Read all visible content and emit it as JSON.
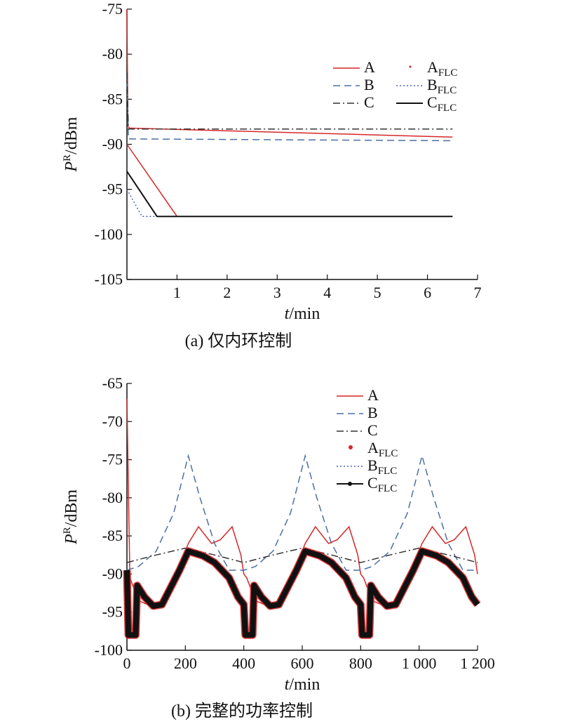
{
  "chart_data": [
    {
      "type": "line",
      "caption": "(a) 仅内环控制",
      "ylabel": "P^R/dBm",
      "xlabel": "t/min",
      "xlim": [
        0,
        7
      ],
      "ylim": [
        -105,
        -75
      ],
      "xticks": [
        "1",
        "2",
        "3",
        "4",
        "5",
        "6",
        "7"
      ],
      "yticks": [
        "-75",
        "-80",
        "-85",
        "-90",
        "-95",
        "-100",
        "-105"
      ],
      "legend": {
        "placement": "top-right",
        "entries": [
          {
            "label": "A",
            "sub": ""
          },
          {
            "label": "A",
            "sub": "FLC"
          },
          {
            "label": "B",
            "sub": ""
          },
          {
            "label": "B",
            "sub": "FLC"
          },
          {
            "label": "C",
            "sub": ""
          },
          {
            "label": "C",
            "sub": "FLC"
          }
        ]
      },
      "series": [
        {
          "name": "A",
          "color": "#d62728",
          "style": "solid",
          "x": [
            0,
            0.02,
            0.05,
            6.5
          ],
          "y": [
            -75,
            -88.0,
            -88.2,
            -89.2
          ]
        },
        {
          "name": "B",
          "color": "#4a6fa5",
          "style": "dashed",
          "x": [
            0,
            0.03,
            6.5
          ],
          "y": [
            -82,
            -89.4,
            -89.6
          ]
        },
        {
          "name": "C",
          "color": "#333333",
          "style": "dashdot",
          "x": [
            0,
            0.03,
            6.5
          ],
          "y": [
            -82,
            -88.3,
            -88.3
          ]
        },
        {
          "name": "A_FLC",
          "color": "#d62728",
          "style": "solid",
          "x": [
            0,
            1.0,
            6.5
          ],
          "y": [
            -90,
            -98,
            -98
          ]
        },
        {
          "name": "B_FLC",
          "color": "#4a5fc4",
          "style": "dotted",
          "x": [
            0,
            0.3,
            0.5,
            0.6,
            6.5
          ],
          "y": [
            -95,
            -98,
            -98,
            -98,
            -98
          ]
        },
        {
          "name": "C_FLC",
          "color": "#111111",
          "style": "solid",
          "x": [
            0,
            0.6,
            6.5
          ],
          "y": [
            -93,
            -98,
            -98
          ]
        }
      ]
    },
    {
      "type": "line",
      "caption": "(b) 完整的功率控制",
      "ylabel": "P^R/dBm",
      "xlabel": "t/min",
      "xlim": [
        0,
        1200
      ],
      "ylim": [
        -100,
        -65
      ],
      "xticks": [
        "0",
        "200",
        "400",
        "600",
        "800",
        "1 000",
        "1 200"
      ],
      "yticks": [
        "-65",
        "-70",
        "-75",
        "-80",
        "-85",
        "-90",
        "-95",
        "-100"
      ],
      "legend": {
        "placement": "top-right",
        "entries": [
          {
            "label": "A",
            "sub": ""
          },
          {
            "label": "B",
            "sub": ""
          },
          {
            "label": "C",
            "sub": ""
          },
          {
            "label": "A",
            "sub": "FLC"
          },
          {
            "label": "B",
            "sub": "FLC"
          },
          {
            "label": "C",
            "sub": "FLC"
          }
        ]
      },
      "series": [
        {
          "name": "A",
          "color": "#d62728",
          "style": "solid",
          "period": 400,
          "x": [
            0,
            10,
            40,
            100,
            180,
            210,
            245,
            290,
            320,
            360,
            390,
            400
          ],
          "y": [
            -67,
            -90.5,
            -93.5,
            -94.5,
            -89,
            -86,
            -83.8,
            -86,
            -85.5,
            -83.8,
            -87.5,
            -90
          ]
        },
        {
          "name": "B",
          "color": "#4a6fa5",
          "style": "dashed",
          "period": 400,
          "x": [
            0,
            40,
            100,
            160,
            210,
            250,
            300,
            350,
            400
          ],
          "y": [
            -89.5,
            -89,
            -87,
            -82,
            -74.5,
            -80,
            -86,
            -89.5,
            -89.5
          ]
        },
        {
          "name": "C",
          "color": "#333333",
          "style": "dashdot",
          "period": 400,
          "x": [
            0,
            100,
            200,
            300,
            400
          ],
          "y": [
            -88.5,
            -87.5,
            -86.6,
            -87.5,
            -88.5
          ]
        },
        {
          "name": "B_FLC",
          "color": "#4a5fc4",
          "style": "dotted",
          "period": 0,
          "x": [
            0,
            20,
            30
          ],
          "y": [
            -93,
            -98,
            -98
          ]
        },
        {
          "name": "C_FLC",
          "color": "#111111",
          "style": "thick",
          "period": 400,
          "x": [
            0,
            5,
            30,
            35,
            60,
            90,
            120,
            180,
            210,
            260,
            300,
            350,
            380,
            400
          ],
          "y": [
            -89.5,
            -98,
            -98,
            -91.5,
            -93,
            -94.2,
            -94,
            -89.5,
            -87,
            -87.6,
            -88.5,
            -90.5,
            -93,
            -94
          ]
        }
      ]
    }
  ]
}
